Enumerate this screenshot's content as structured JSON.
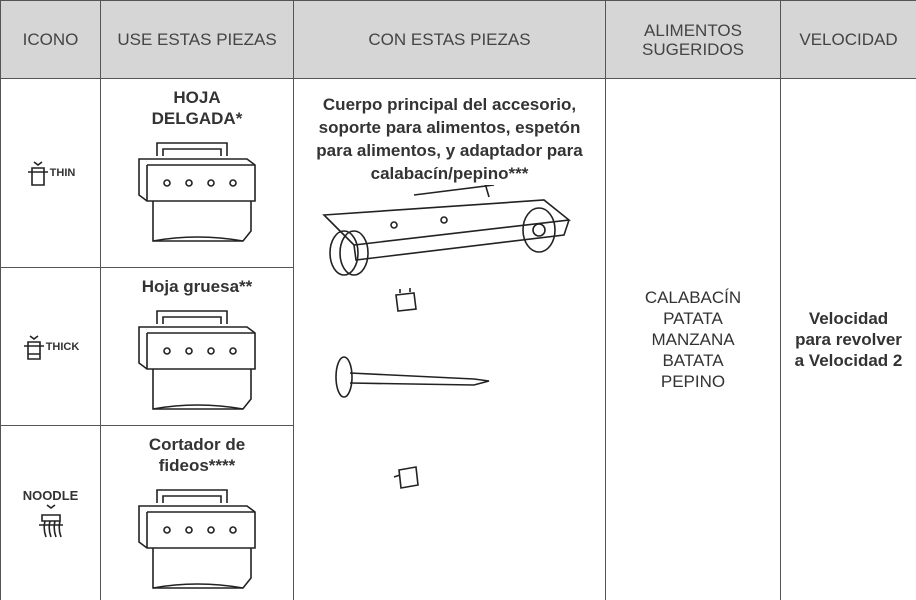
{
  "table": {
    "header": [
      "ICONO",
      "USE ESTAS PIEZAS",
      "CON ESTAS PIEZAS",
      "ALIMENTOS SUGERIDOS",
      "VELOCIDAD"
    ],
    "icons": [
      "THIN",
      "THICK",
      "NOODLE"
    ],
    "pieces": [
      "HOJA DELGADA*",
      "Hoja gruesa**",
      "Cortador de fideos****"
    ],
    "with_pieces": "Cuerpo principal del accesorio, soporte para alimentos, espetón para alimentos, y adaptador para calabacín/pepino***",
    "foods": [
      "CALABACÍN",
      "PATATA",
      "MANZANA",
      "BATATA",
      "PEPINO"
    ],
    "speed": "Velocidad para revolver a Velocidad 2"
  }
}
